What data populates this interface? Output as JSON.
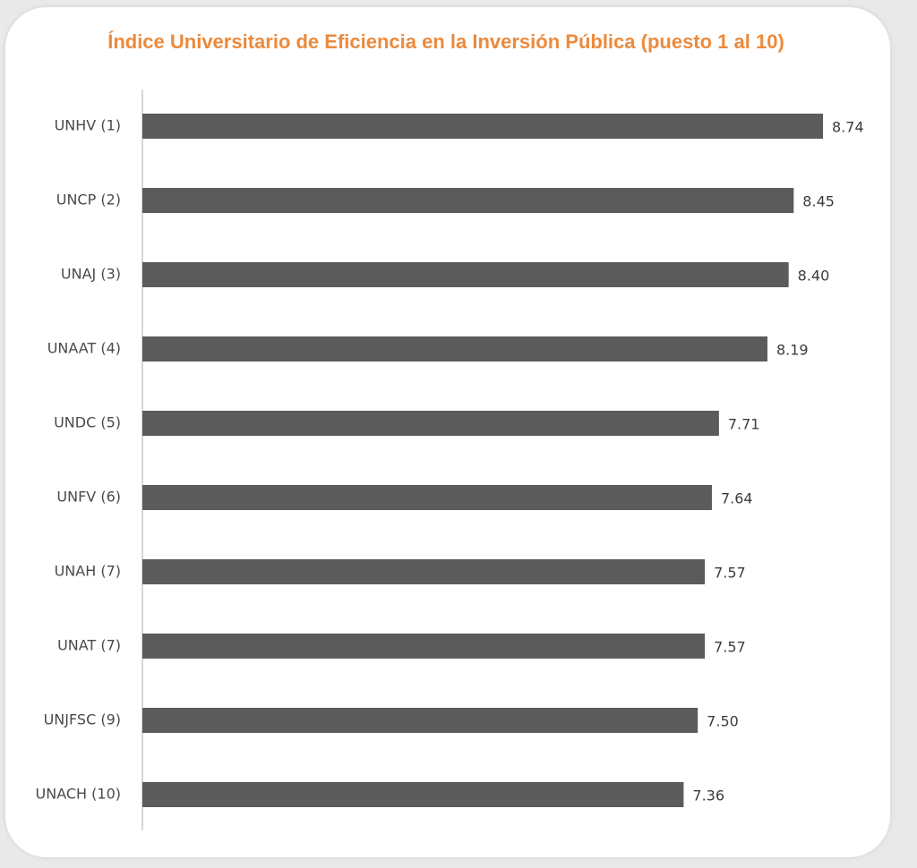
{
  "chart_data": {
    "type": "bar",
    "orientation": "horizontal",
    "title": "Índice Universitario de Eficiencia en la Inversión Pública (puesto 1 al 10)",
    "categories": [
      "UNHV (1)",
      "UNCP (2)",
      "UNAJ (3)",
      "UNAAT (4)",
      "UNDC (5)",
      "UNFV (6)",
      "UNAH (7)",
      "UNAT (7)",
      "UNJFSC (9)",
      "UNACH (10)"
    ],
    "values": [
      8.74,
      8.45,
      8.4,
      8.19,
      7.71,
      7.64,
      7.57,
      7.57,
      7.5,
      7.36
    ],
    "value_labels": [
      "8.74",
      "8.45",
      "8.40",
      "8.19",
      "7.71",
      "7.64",
      "7.57",
      "7.57",
      "7.50",
      "7.36"
    ],
    "xlim": [
      2.0,
      8.74
    ],
    "grid": false,
    "legend": "none",
    "bar_color": "#5b5b5b",
    "title_color": "#ec8a3c"
  }
}
